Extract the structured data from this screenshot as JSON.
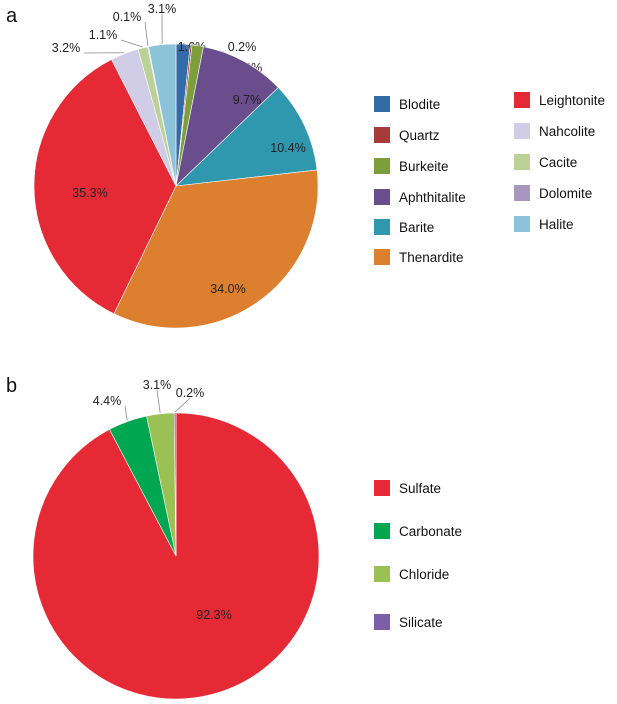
{
  "chart_data": [
    {
      "type": "pie",
      "panel_label": "a",
      "legend_placement": "right",
      "slices": [
        {
          "name": "Blodite",
          "value": 1.6,
          "label": "1.6%",
          "color": "#336ba8"
        },
        {
          "name": "Quartz",
          "value": 0.2,
          "label": "0.2%",
          "color": "#a83a3a"
        },
        {
          "name": "Burkeite",
          "value": 1.3,
          "label": "1.3%",
          "color": "#7d9e3c"
        },
        {
          "name": "Aphthitalite",
          "value": 9.7,
          "label": "9.7%",
          "color": "#6a4d8c"
        },
        {
          "name": "Barite",
          "value": 10.4,
          "label": "10.4%",
          "color": "#2f98ae"
        },
        {
          "name": "Thenardite",
          "value": 34.0,
          "label": "34.0%",
          "color": "#dc8030"
        },
        {
          "name": "Leightonite",
          "value": 35.3,
          "label": "35.3%",
          "color": "#e52a35"
        },
        {
          "name": "Nahcolite",
          "value": 3.2,
          "label": "3.2%",
          "color": "#d2cde6"
        },
        {
          "name": "Cacite",
          "value": 1.1,
          "label": "1.1%",
          "color": "#bcd196"
        },
        {
          "name": "Dolomite",
          "value": 0.1,
          "label": "0.1%",
          "color": "#a797c0"
        },
        {
          "name": "Halite",
          "value": 3.1,
          "label": "3.1%",
          "color": "#8dc3d8"
        }
      ]
    },
    {
      "type": "pie",
      "panel_label": "b",
      "legend_placement": "right",
      "slices": [
        {
          "name": "Sulfate",
          "value": 92.3,
          "label": "92.3%",
          "color": "#e52a35"
        },
        {
          "name": "Carbonate",
          "value": 4.4,
          "label": "4.4%",
          "color": "#00a650"
        },
        {
          "name": "Chloride",
          "value": 3.1,
          "label": "3.1%",
          "color": "#9bc054"
        },
        {
          "name": "Silicate",
          "value": 0.2,
          "label": "0.2%",
          "color": "#7d5ea8"
        }
      ]
    }
  ]
}
